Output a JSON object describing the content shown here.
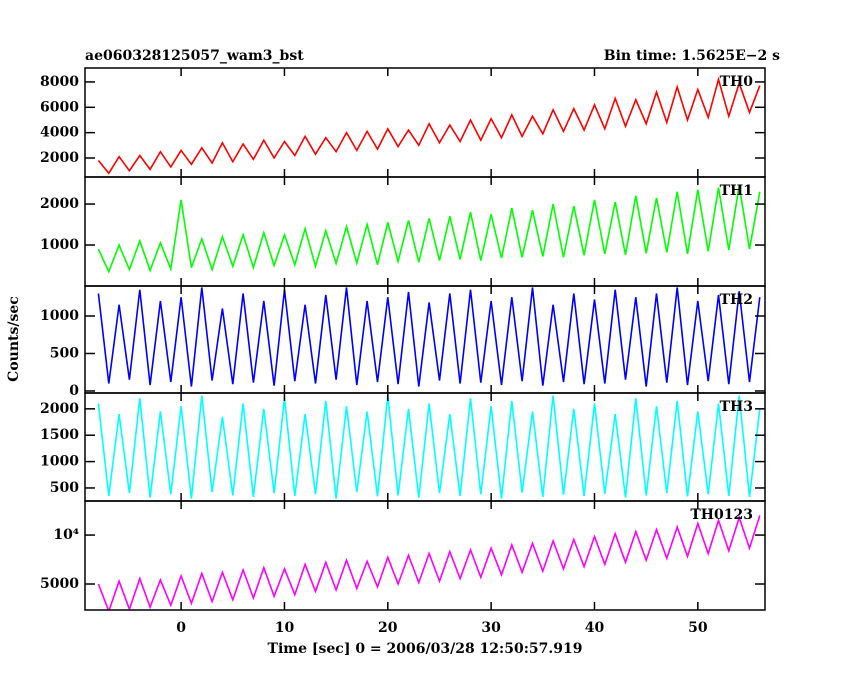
{
  "chart_data": {
    "type": "line",
    "title": "ae060328125057_wam3_bst",
    "subtitle": "Bin time: 1.5625E−2 s",
    "xlabel": "Time [sec] 0 = 2006/03/28 12:50:57.919",
    "ylabel": "Counts/sec",
    "xlim": [
      -9.3,
      56.5
    ],
    "xticks": [
      0,
      10,
      20,
      30,
      40,
      50
    ],
    "x": [
      -8,
      -7,
      -6,
      -5,
      -4,
      -3,
      -2,
      -1,
      0,
      1,
      2,
      3,
      4,
      5,
      6,
      7,
      8,
      9,
      10,
      11,
      12,
      13,
      14,
      15,
      16,
      17,
      18,
      19,
      20,
      21,
      22,
      23,
      24,
      25,
      26,
      27,
      28,
      29,
      30,
      31,
      32,
      33,
      34,
      35,
      36,
      37,
      38,
      39,
      40,
      41,
      42,
      43,
      44,
      45,
      46,
      47,
      48,
      49,
      50,
      51,
      52,
      53,
      54,
      55,
      56
    ],
    "series": [
      {
        "name": "TH0",
        "color": "#ff0000",
        "ylim": [
          500,
          9100
        ],
        "yticks": [
          2000,
          4000,
          6000,
          8000
        ],
        "values": [
          1800,
          800,
          2100,
          1000,
          2200,
          1100,
          2500,
          1300,
          2600,
          1500,
          2800,
          1600,
          3200,
          1700,
          3100,
          1900,
          3400,
          2000,
          3300,
          2200,
          3700,
          2300,
          3600,
          2500,
          4000,
          2600,
          4100,
          2700,
          4300,
          2900,
          4200,
          3000,
          4700,
          3200,
          4600,
          3300,
          5000,
          3400,
          5100,
          3600,
          5400,
          3700,
          5300,
          3900,
          5800,
          4100,
          5900,
          4200,
          6200,
          4300,
          6700,
          4500,
          6600,
          4700,
          7200,
          4800,
          7600,
          5000,
          7400,
          5200,
          8200,
          5300,
          7900,
          5600,
          7700
        ]
      },
      {
        "name": "TH1",
        "color": "#00ff00",
        "ylim": [
          0,
          2660
        ],
        "yticks": [
          1000,
          2000
        ],
        "values": [
          900,
          350,
          1000,
          400,
          1100,
          380,
          1050,
          420,
          2100,
          450,
          1150,
          400,
          1200,
          480,
          1250,
          450,
          1300,
          500,
          1250,
          520,
          1400,
          480,
          1350,
          550,
          1450,
          560,
          1500,
          520,
          1550,
          600,
          1600,
          580,
          1650,
          620,
          1700,
          650,
          1800,
          620,
          1750,
          680,
          1900,
          700,
          1850,
          720,
          2000,
          700,
          1950,
          750,
          2100,
          780,
          2050,
          760,
          2200,
          800,
          2150,
          820,
          2300,
          780,
          2350,
          850,
          2400,
          880,
          2450,
          900,
          2300
        ]
      },
      {
        "name": "TH2",
        "color": "#0000ff",
        "ylim": [
          -27,
          1400
        ],
        "yticks": [
          0,
          500,
          1000
        ],
        "values": [
          1300,
          100,
          1150,
          150,
          1350,
          80,
          1200,
          120,
          1250,
          60,
          1380,
          140,
          1100,
          90,
          1300,
          110,
          1200,
          70,
          1350,
          130,
          1150,
          100,
          1280,
          150,
          1380,
          80,
          1200,
          120,
          1250,
          90,
          1320,
          60,
          1180,
          140,
          1300,
          100,
          1350,
          110,
          1200,
          80,
          1250,
          130,
          1380,
          70,
          1150,
          120,
          1300,
          90,
          1220,
          100,
          1350,
          150,
          1250,
          60,
          1300,
          110,
          1380,
          80,
          1200,
          130,
          1280,
          90,
          1330,
          120,
          1250
        ]
      },
      {
        "name": "TH3",
        "color": "#00ffff",
        "ylim": [
          253,
          2300
        ],
        "yticks": [
          500,
          1000,
          1500,
          2000
        ],
        "values": [
          2100,
          350,
          1900,
          400,
          2200,
          320,
          1950,
          380,
          2050,
          300,
          2250,
          420,
          1850,
          360,
          2100,
          330,
          2000,
          400,
          2200,
          350,
          1900,
          380,
          2150,
          300,
          2050,
          420,
          1950,
          340,
          2250,
          360,
          2000,
          320,
          2100,
          400,
          1900,
          350,
          2200,
          380,
          2050,
          300,
          2150,
          410,
          1950,
          330,
          2250,
          370,
          2000,
          350,
          2100,
          390,
          1900,
          320,
          2200,
          360,
          2050,
          400,
          2150,
          340,
          1950,
          380,
          2100,
          350,
          2250,
          330,
          2000
        ]
      },
      {
        "name": "TH0123",
        "color": "#ff00ff",
        "ylim": [
          3460,
          16200
        ],
        "log": true,
        "yticks": [
          5000,
          {
            "value": 10000,
            "label": "10⁴"
          }
        ],
        "values": [
          5000,
          3400,
          5200,
          3500,
          5400,
          3600,
          5300,
          3700,
          5600,
          3800,
          5800,
          3900,
          5900,
          4000,
          6100,
          4100,
          6300,
          4200,
          6200,
          4300,
          6600,
          4500,
          6800,
          4600,
          7000,
          4700,
          6900,
          4800,
          7300,
          5000,
          7500,
          5100,
          7700,
          5200,
          7900,
          5400,
          8100,
          5500,
          8300,
          5700,
          8700,
          5900,
          8900,
          6000,
          9200,
          6200,
          9400,
          6400,
          9800,
          6600,
          10200,
          6800,
          10500,
          7000,
          10800,
          7200,
          11200,
          7400,
          11800,
          7700,
          12300,
          8000,
          12800,
          8300,
          13200
        ]
      }
    ]
  }
}
